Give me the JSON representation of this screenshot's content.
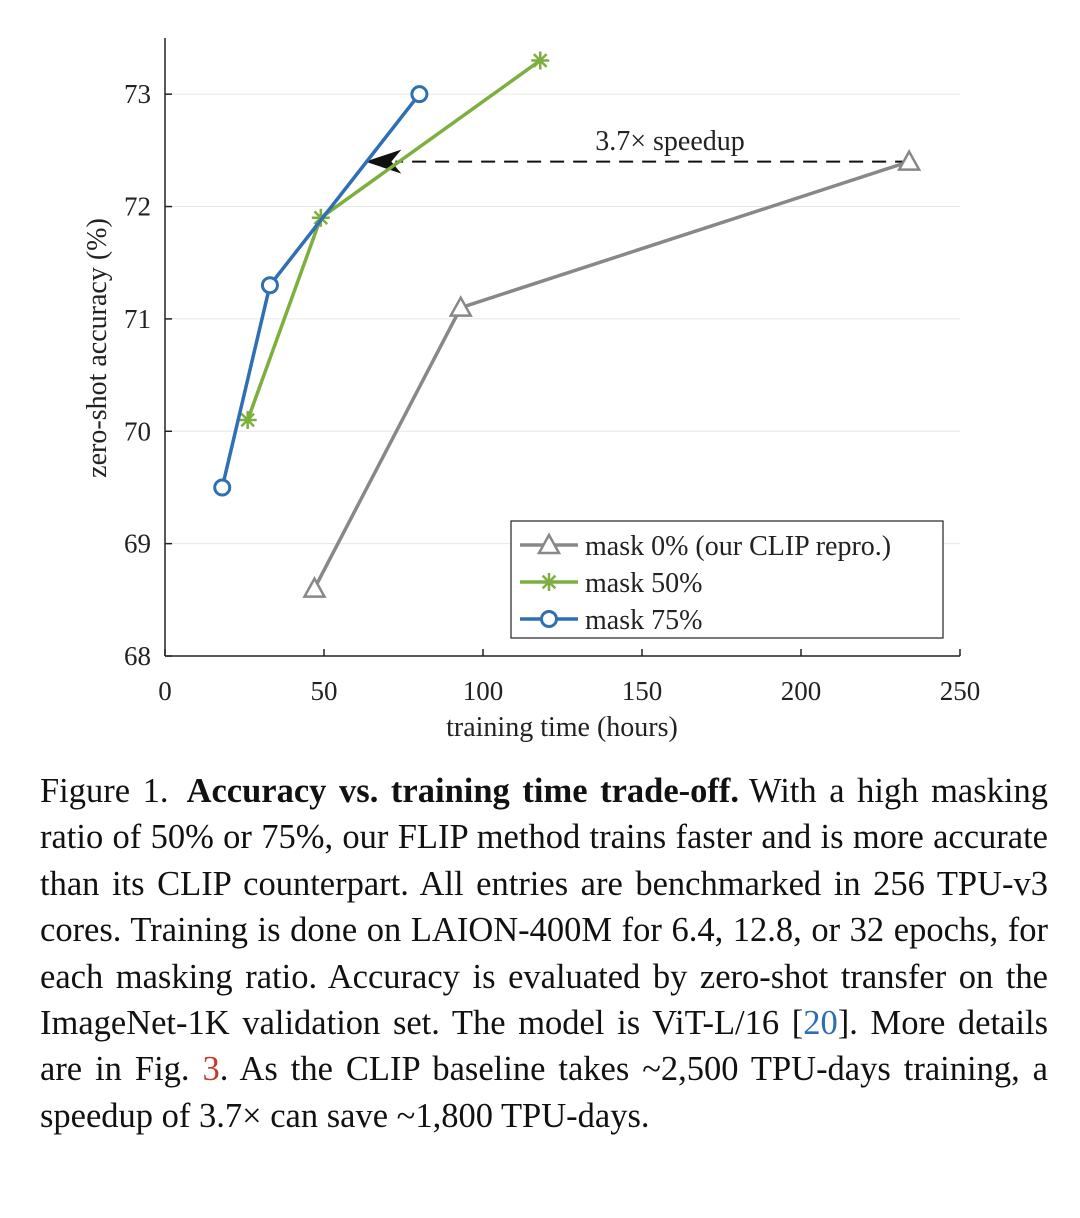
{
  "chart_data": {
    "type": "line",
    "xlabel": "training time (hours)",
    "ylabel": "zero-shot accuracy (%)",
    "xlim": [
      0,
      250
    ],
    "ylim": [
      68,
      73.5
    ],
    "xticks": [
      0,
      50,
      100,
      150,
      200,
      250
    ],
    "yticks": [
      68,
      69,
      70,
      71,
      72,
      73
    ],
    "grid": true,
    "legend_position": "bottom-right",
    "series": [
      {
        "name": "mask 0% (our CLIP repro.)",
        "marker": "triangle",
        "color": "#888888",
        "x": [
          47,
          93,
          234
        ],
        "y": [
          68.6,
          71.1,
          72.4
        ]
      },
      {
        "name": "mask 50%",
        "marker": "asterisk",
        "color": "#7daf3e",
        "x": [
          26,
          49,
          118
        ],
        "y": [
          70.1,
          71.9,
          73.3
        ]
      },
      {
        "name": "mask 75%",
        "marker": "circle",
        "color": "#2f6fb3",
        "x": [
          18,
          33,
          80
        ],
        "y": [
          69.5,
          71.3,
          73.0
        ]
      }
    ],
    "annotation": {
      "text": "3.7× speedup",
      "from": [
        234,
        72.4
      ],
      "to": [
        63,
        72.4
      ]
    }
  },
  "caption": {
    "label": "Figure 1.",
    "title": "Accuracy vs. training time trade-off.",
    "body_1": "With a high masking ratio of 50% or 75%, our FLIP method trains faster and is more accurate than its CLIP counterpart. All entries are benchmarked in 256 TPU-v3 cores. Training is done on LAION-400M for 6.4, 12.8, or 32 epochs, for each masking ratio. Accuracy is evaluated by zero-shot transfer on the ImageNet-1K validation set. The model is ViT-L/16 [",
    "ref_1": "20",
    "body_2": "]. More details are in Fig. ",
    "ref_2": "3",
    "body_3": ". As the CLIP baseline takes ~2,500 TPU-days training, a speedup of 3.7× can save ~1,800 TPU-days."
  }
}
